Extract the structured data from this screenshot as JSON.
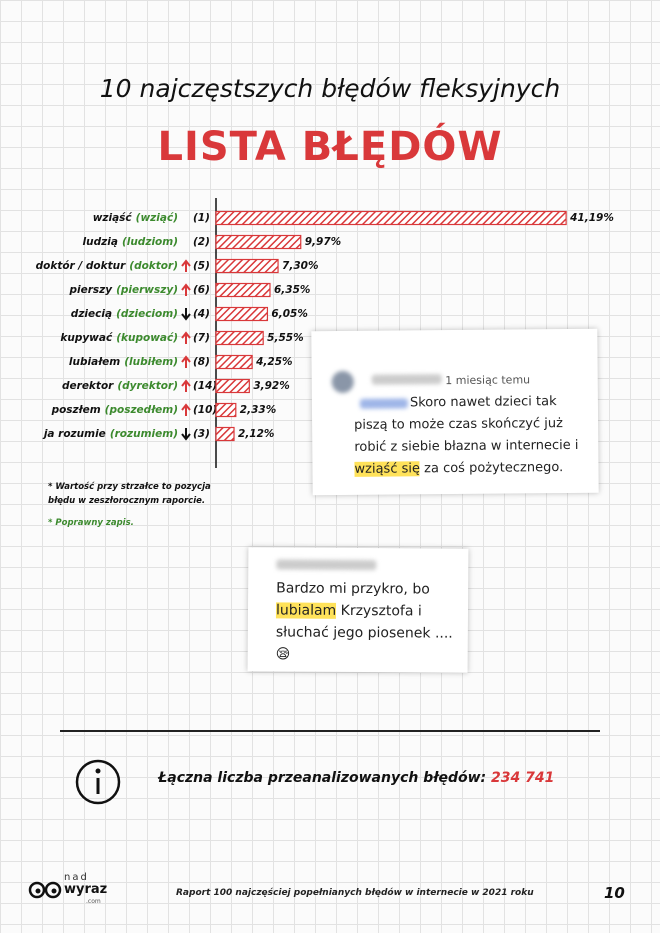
{
  "header": {
    "title": "10 najczęstszych błędów fleksyjnych",
    "subtitle": "LISTA BŁĘDÓW"
  },
  "chart_data": {
    "type": "bar",
    "orientation": "horizontal",
    "categories": [
      "wziąść",
      "ludzią",
      "doktór / doktur",
      "pierszy",
      "dziecią",
      "kupywać",
      "lubiałem",
      "derektor",
      "poszłem",
      "ja rozumie"
    ],
    "corrections": [
      "(wziąć)",
      "(ludziom)",
      "(doktor)",
      "(pierwszy)",
      "(dzieciom)",
      "(kupować)",
      "(lubiłem)",
      "(dyrektor)",
      "(poszedłem)",
      "(rozumiem)"
    ],
    "ranks": [
      "(1)",
      "(2)",
      "(5)",
      "(6)",
      "(4)",
      "(7)",
      "(8)",
      "(14)",
      "(10)",
      "(3)"
    ],
    "trends": [
      null,
      null,
      "up",
      "up",
      "down",
      "up",
      "up",
      "up",
      "up",
      "down"
    ],
    "values": [
      41.19,
      9.97,
      7.3,
      6.35,
      6.05,
      5.55,
      4.25,
      3.92,
      2.33,
      2.12
    ],
    "value_labels": [
      "41,19%",
      "9,97%",
      "7,30%",
      "6,35%",
      "6,05%",
      "5,55%",
      "4,25%",
      "3,92%",
      "2,33%",
      "2,12%"
    ],
    "xlim": [
      0,
      42
    ],
    "color": "#d9383a",
    "correction_color": "#3c8a2e"
  },
  "notes": [
    "* Wartość przy strzałce to pozycja błędu w zeszłorocznym raporcie.",
    "* Poprawny zapis."
  ],
  "comments": [
    {
      "time": "1 miesiąc temu",
      "before": "Skoro nawet dzieci tak piszą to może czas skończyć już robić z siebie błazna w internecie i ",
      "highlight": "wziąść się",
      "after": " za coś pożytecznego."
    },
    {
      "time": null,
      "before": "Bardzo mi przykro, bo ",
      "highlight": "lubialam",
      "after": " Krzysztofa i słuchać jego piosenek .... 😪"
    }
  ],
  "summary": {
    "label": "Łączna liczba przeanalizowanych błędów:",
    "value": "234 741"
  },
  "footer": {
    "logo_top": "nad",
    "logo_main": "wyraz",
    "logo_sub": ".com",
    "text": "Raport 100 najczęściej popełnianych błędów w internecie w 2021 roku",
    "page": "10"
  }
}
